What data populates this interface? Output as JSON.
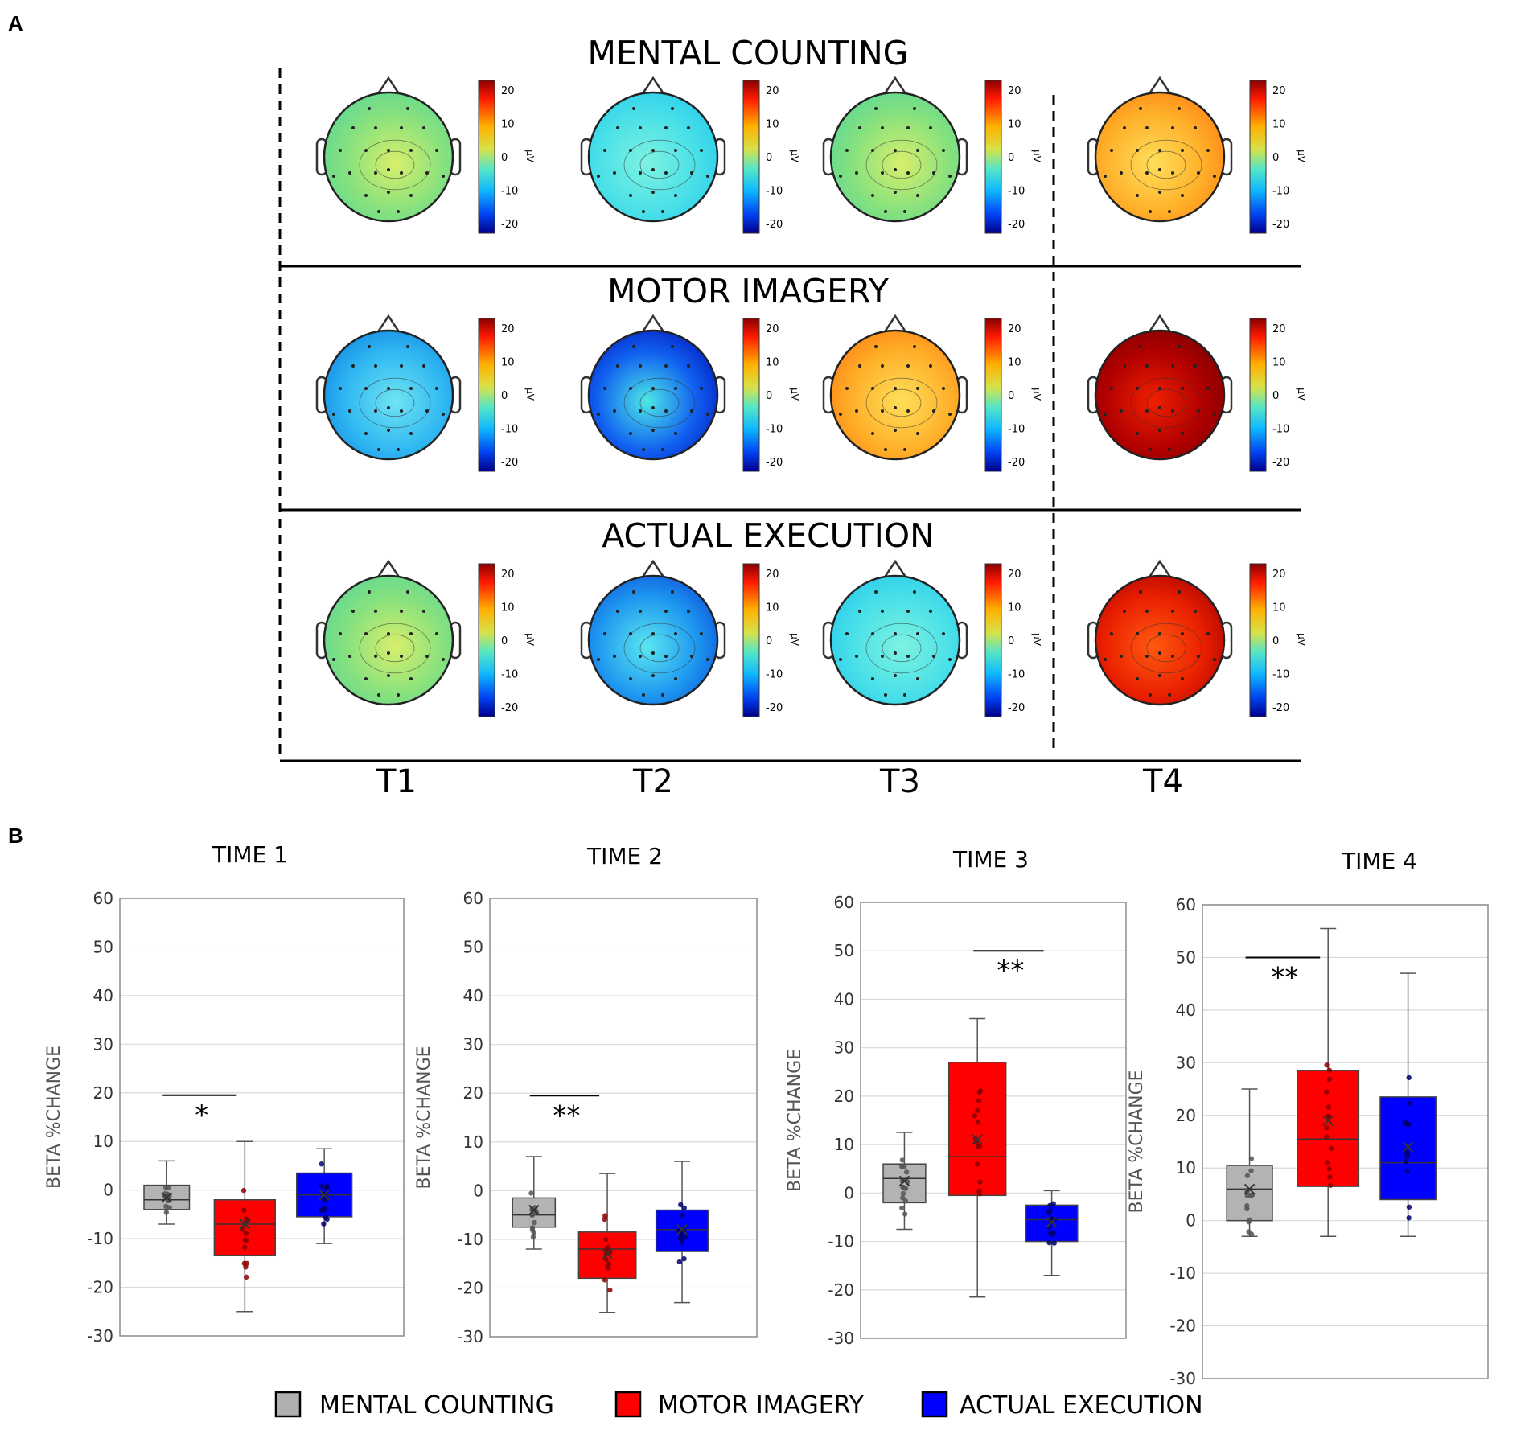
{
  "figure": {
    "panel_a_label": "A",
    "panel_b_label": "B",
    "rows": [
      {
        "title": "MENTAL COUNTING",
        "maps": [
          {
            "time": "T1",
            "scheme": "green",
            "level": 5
          },
          {
            "time": "T2",
            "scheme": "cyan",
            "level": -7
          },
          {
            "time": "T3",
            "scheme": "green",
            "level": 3
          },
          {
            "time": "T4",
            "scheme": "orange",
            "level": 15
          }
        ]
      },
      {
        "title": "MOTOR IMAGERY",
        "maps": [
          {
            "time": "T1",
            "scheme": "lightblue",
            "level": -10
          },
          {
            "time": "T2",
            "scheme": "deepblue",
            "level": -20
          },
          {
            "time": "T3",
            "scheme": "orange",
            "level": 14
          },
          {
            "time": "T4",
            "scheme": "darkred",
            "level": 25
          }
        ]
      },
      {
        "title": "ACTUAL EXECUTION",
        "maps": [
          {
            "time": "T1",
            "scheme": "green",
            "level": 3
          },
          {
            "time": "T2",
            "scheme": "blue",
            "level": -12
          },
          {
            "time": "T3",
            "scheme": "cyan",
            "level": -8
          },
          {
            "time": "T4",
            "scheme": "red",
            "level": 20
          }
        ]
      }
    ],
    "colorbar": {
      "ticks": [
        "20",
        "10",
        "0",
        "-10",
        "-20"
      ],
      "unit": "μV"
    },
    "time_labels": [
      "T1",
      "T2",
      "T3",
      "T4"
    ],
    "legend": [
      {
        "label": "MENTAL COUNTING",
        "color": "#b0b0b0"
      },
      {
        "label": "MOTOR IMAGERY",
        "color": "#ff0000"
      },
      {
        "label": "ACTUAL EXECUTION",
        "color": "#0000ff"
      }
    ],
    "colors": {
      "mental": "#b3b3b3",
      "motor": "#ff0000",
      "actual": "#0000ff"
    }
  },
  "chart_data": [
    {
      "type": "box",
      "title": "TIME 1",
      "ylabel": "BETA %CHANGE",
      "ylim": [
        -30,
        60
      ],
      "yticks": [
        60,
        50,
        40,
        30,
        20,
        10,
        0,
        -10,
        -20,
        -30
      ],
      "series": [
        {
          "name": "MENTAL COUNTING",
          "min": -7,
          "q1": -4,
          "median": -2,
          "q3": 1,
          "max": 6,
          "mean": -1.5
        },
        {
          "name": "MOTOR IMAGERY",
          "min": -25,
          "q1": -13.5,
          "median": -7,
          "q3": -2,
          "max": 10,
          "mean": -7
        },
        {
          "name": "ACTUAL EXECUTION",
          "min": -11,
          "q1": -5.5,
          "median": -1,
          "q3": 3.5,
          "max": 8.5,
          "mean": -1
        }
      ],
      "significance": {
        "label": "*",
        "from": "MENTAL COUNTING",
        "to": "MOTOR IMAGERY",
        "y": 19.5
      }
    },
    {
      "type": "box",
      "title": "TIME 2",
      "ylabel": "BETA %CHANGE",
      "ylim": [
        -30,
        60
      ],
      "yticks": [
        60,
        50,
        40,
        30,
        20,
        10,
        0,
        -10,
        -20,
        -30
      ],
      "series": [
        {
          "name": "MENTAL COUNTING",
          "min": -12,
          "q1": -7.5,
          "median": -5,
          "q3": -1.5,
          "max": 7,
          "mean": -4
        },
        {
          "name": "MOTOR IMAGERY",
          "min": -25,
          "q1": -18,
          "median": -12,
          "q3": -8.5,
          "max": 3.5,
          "mean": -13
        },
        {
          "name": "ACTUAL EXECUTION",
          "min": -23,
          "q1": -12.5,
          "median": -8,
          "q3": -4,
          "max": 6,
          "mean": -8
        }
      ],
      "significance": {
        "label": "**",
        "from": "MENTAL COUNTING",
        "to": "MOTOR IMAGERY",
        "y": 19.5
      }
    },
    {
      "type": "box",
      "title": "TIME 3",
      "ylabel": "BETA %CHANGE",
      "ylim": [
        -30,
        60
      ],
      "yticks": [
        60,
        50,
        40,
        30,
        20,
        10,
        0,
        -10,
        -20,
        -30
      ],
      "series": [
        {
          "name": "MENTAL COUNTING",
          "min": -7.5,
          "q1": -2,
          "median": 3,
          "q3": 6,
          "max": 12.5,
          "mean": 2.5
        },
        {
          "name": "MOTOR IMAGERY",
          "min": -21.5,
          "q1": -0.5,
          "median": 7.5,
          "q3": 27,
          "max": 36,
          "mean": 11
        },
        {
          "name": "ACTUAL EXECUTION",
          "min": -17,
          "q1": -10,
          "median": -5.5,
          "q3": -2.5,
          "max": 0.5,
          "mean": -6
        }
      ],
      "significance": {
        "label": "**",
        "from": "MOTOR IMAGERY",
        "to": "ACTUAL EXECUTION",
        "y": 50
      }
    },
    {
      "type": "box",
      "title": "TIME 4",
      "ylabel": "BETA %CHANGE",
      "ylim": [
        -30,
        60
      ],
      "yticks": [
        60,
        50,
        40,
        30,
        20,
        10,
        0,
        -10,
        -20,
        -30
      ],
      "series": [
        {
          "name": "MENTAL COUNTING",
          "min": -3,
          "q1": 0,
          "median": 6,
          "q3": 10.5,
          "max": 25,
          "mean": 6
        },
        {
          "name": "MOTOR IMAGERY",
          "min": -3,
          "q1": 6.5,
          "median": 15.5,
          "q3": 28.5,
          "max": 55.5,
          "mean": 19
        },
        {
          "name": "ACTUAL EXECUTION",
          "min": -3,
          "q1": 4,
          "median": 11,
          "q3": 23.5,
          "max": 47,
          "mean": 14
        }
      ],
      "significance": {
        "label": "**",
        "from": "MENTAL COUNTING",
        "to": "MOTOR IMAGERY",
        "y": 50
      }
    }
  ]
}
